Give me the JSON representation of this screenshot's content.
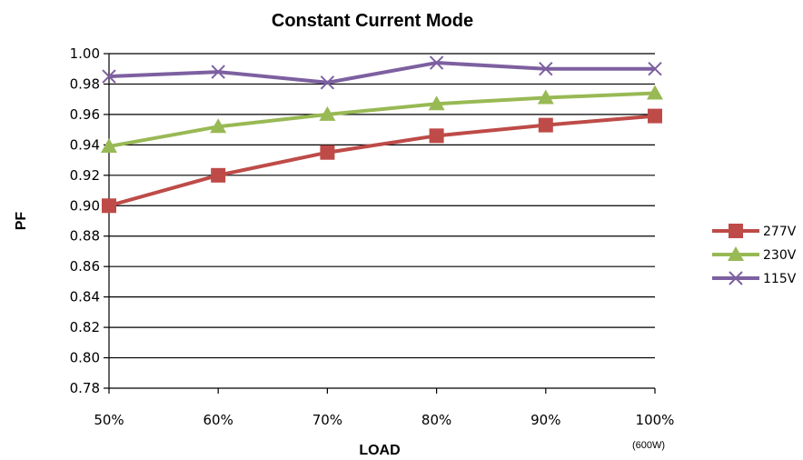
{
  "chart_data": {
    "type": "line",
    "title": "Constant Current Mode",
    "xlabel": "LOAD",
    "ylabel": "PF",
    "x_note": "(600W)",
    "categories": [
      "50%",
      "60%",
      "70%",
      "80%",
      "90%",
      "100%"
    ],
    "ylim": [
      0.78,
      1.0
    ],
    "yticks": [
      "0.78",
      "0.80",
      "0.82",
      "0.84",
      "0.86",
      "0.88",
      "0.90",
      "0.92",
      "0.94",
      "0.96",
      "0.98",
      "1.00"
    ],
    "grid": true,
    "legend_position": "right",
    "series": [
      {
        "name": "277V",
        "color": "#be4b48",
        "marker": "square",
        "values": [
          0.9,
          0.92,
          0.935,
          0.946,
          0.953,
          0.959
        ]
      },
      {
        "name": "230V",
        "color": "#98b954",
        "marker": "triangle",
        "values": [
          0.939,
          0.952,
          0.96,
          0.967,
          0.971,
          0.974
        ]
      },
      {
        "name": "115V",
        "color": "#7d60a0",
        "marker": "x",
        "values": [
          0.985,
          0.988,
          0.981,
          0.994,
          0.99,
          0.99
        ]
      }
    ]
  }
}
